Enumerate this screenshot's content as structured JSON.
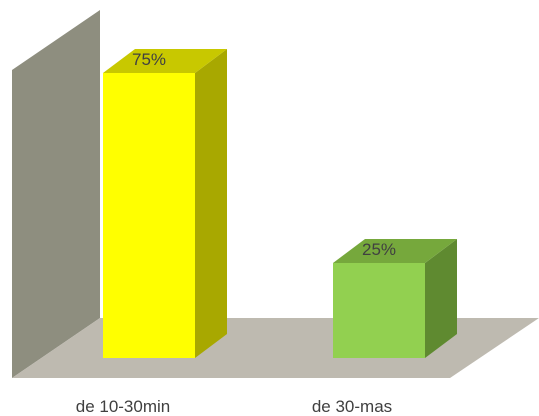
{
  "chart_data": {
    "type": "bar",
    "style": "3d",
    "categories": [
      "de 10-30min",
      "de 30-mas"
    ],
    "values": [
      75,
      25
    ],
    "data_labels": [
      "75%",
      "25%"
    ],
    "unit": "%",
    "ylim": [
      0,
      100
    ],
    "grid": false,
    "legend": "none",
    "colors": {
      "bars": [
        "#ffff00",
        "#92d050"
      ],
      "bar_tops": [
        "#c8c800",
        "#76a83c"
      ],
      "bar_sides": [
        "#a8a800",
        "#5f8a30"
      ],
      "back_wall": "#8e8e7f",
      "floor": "#bebab0"
    }
  }
}
